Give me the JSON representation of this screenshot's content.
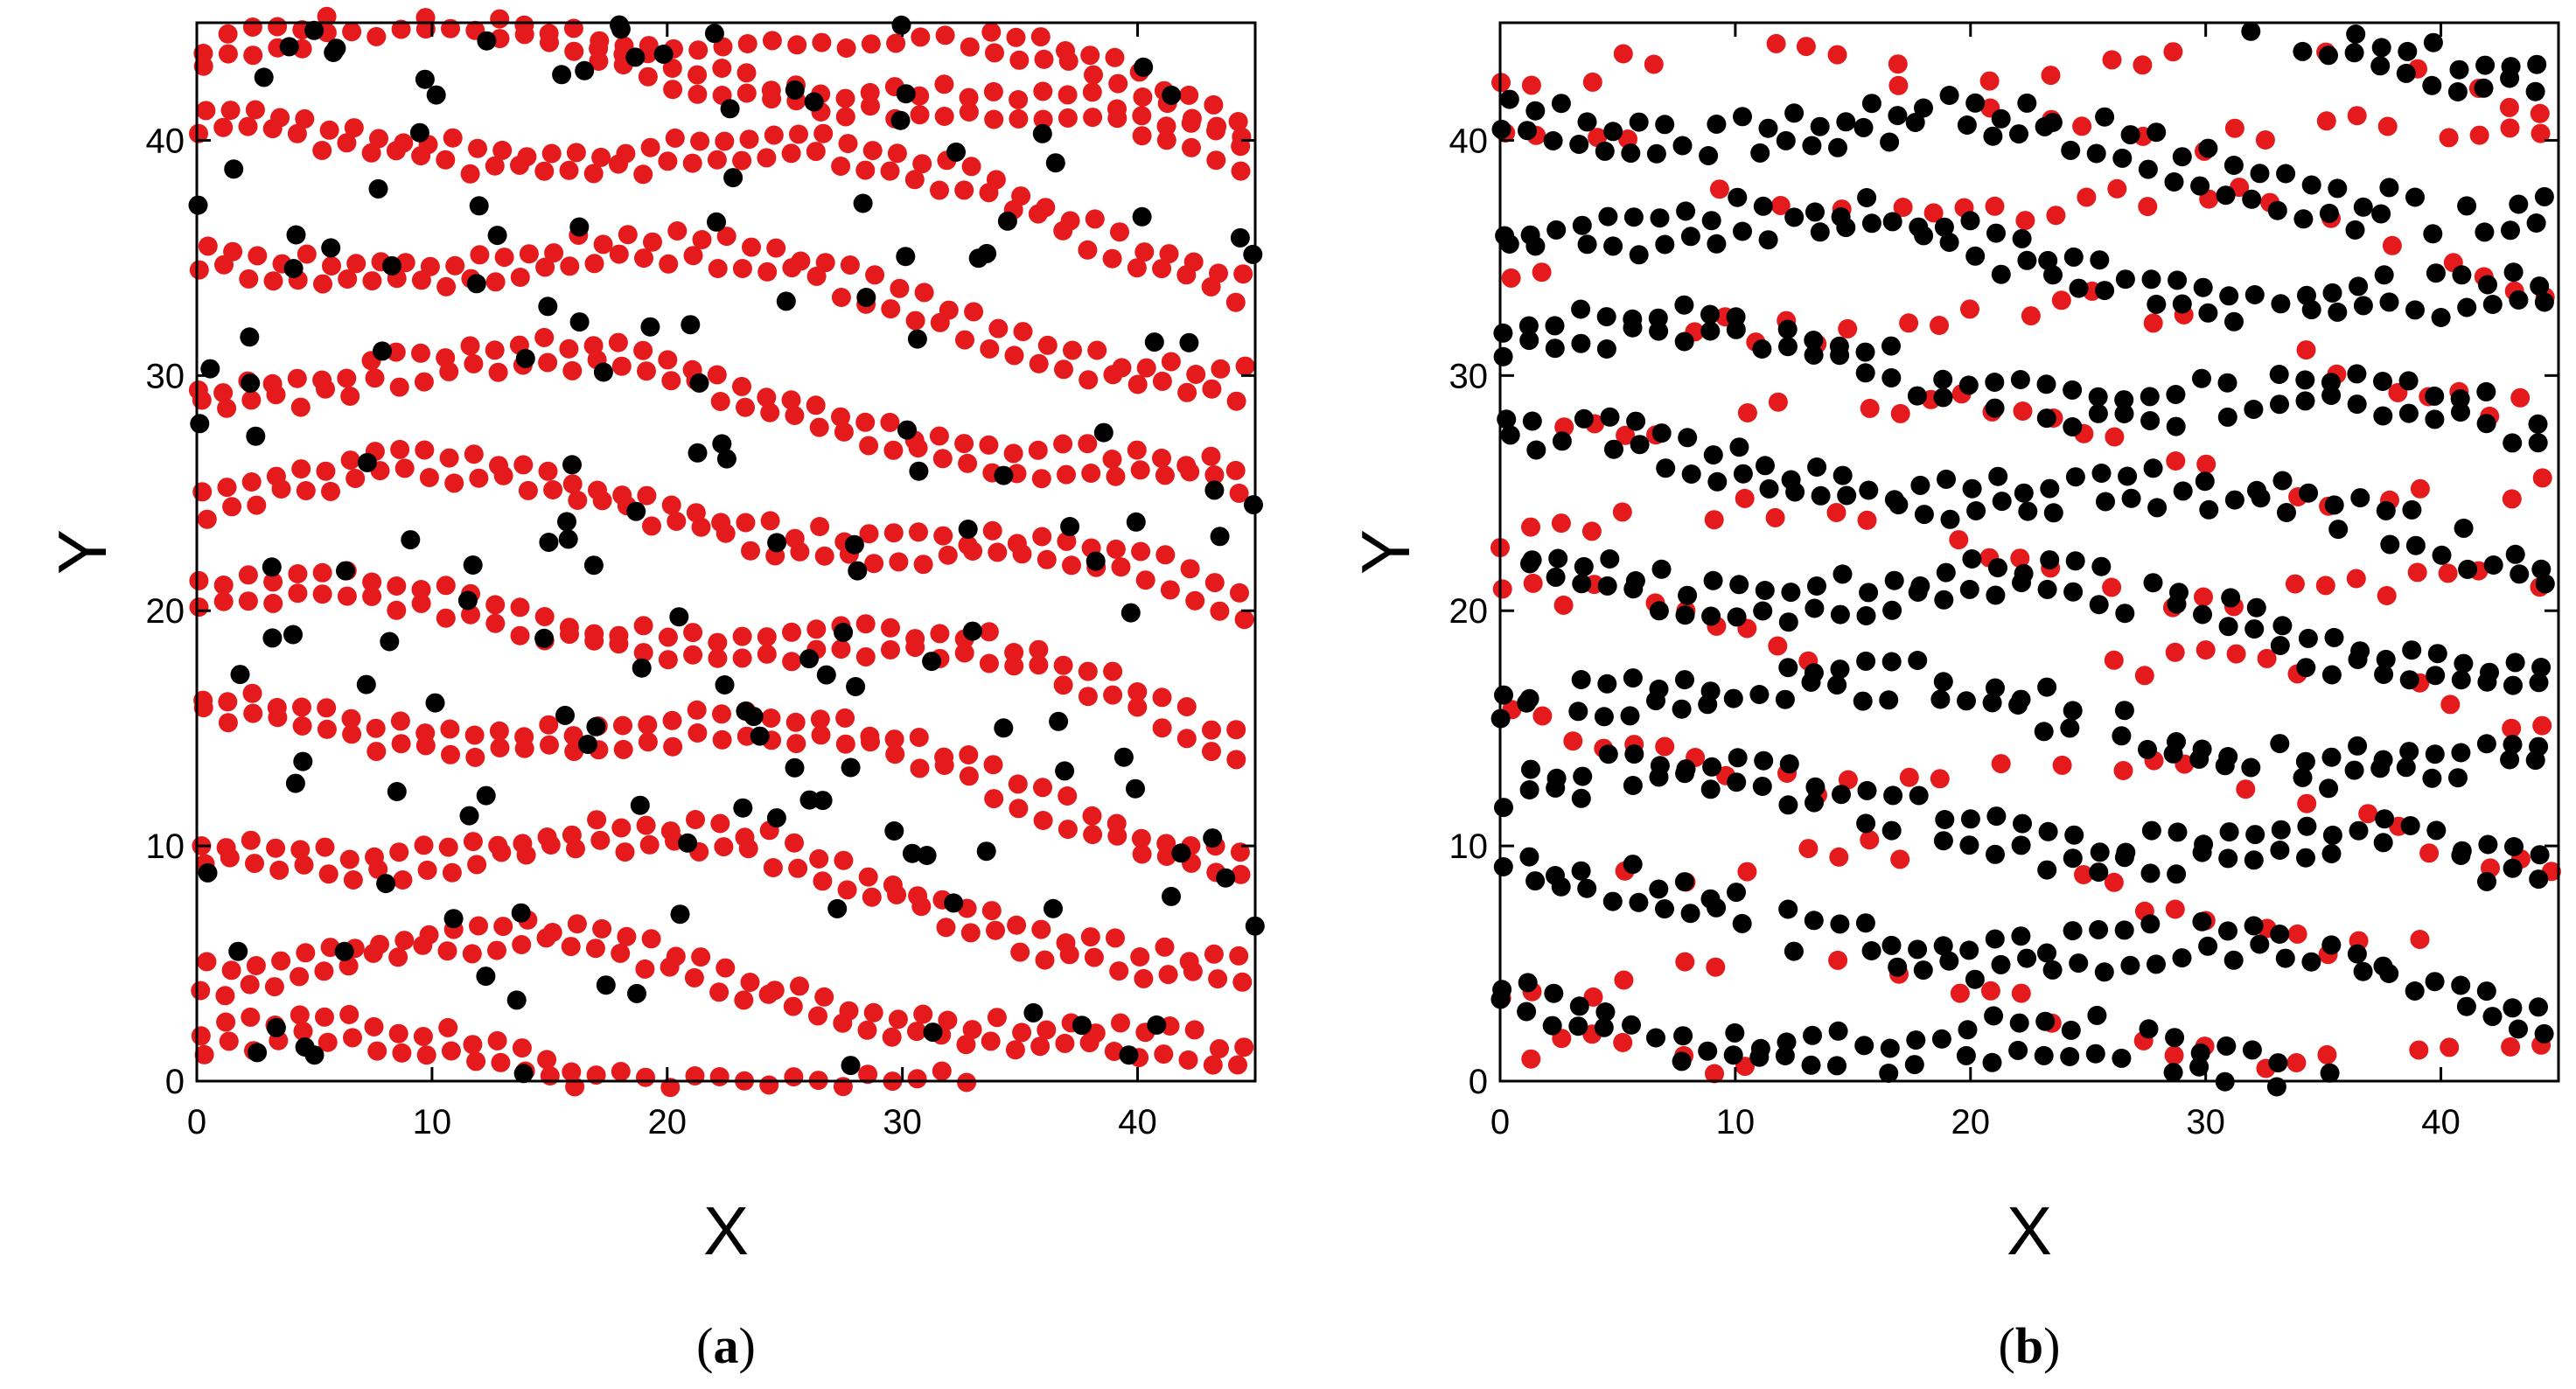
{
  "chart_data": [
    {
      "type": "scatter",
      "panel_label": "a",
      "xlabel": "X",
      "ylabel": "Y",
      "xlim": [
        0,
        45
      ],
      "ylim": [
        0,
        45
      ],
      "xticks": [
        0,
        10,
        20,
        30,
        40
      ],
      "yticks": [
        0,
        10,
        20,
        30,
        40
      ],
      "grid": false,
      "series": [
        {
          "color": "#e41a1c",
          "kind": "banded",
          "bands_y0": [
            0.6,
            4.8,
            9.6,
            14.8,
            19.5,
            24.6,
            29.6,
            34.6,
            39.6,
            43.5
          ],
          "band_sag": 2.0,
          "band_tilt": -5.5,
          "band_wave": 1.0,
          "point_spacing": 1.05,
          "y_jitter": 0.35,
          "rows_per_band": 2,
          "row_gap": 0.9
        },
        {
          "color": "#000000",
          "kind": "scattered",
          "count": 170,
          "seed": 17
        }
      ]
    },
    {
      "type": "scatter",
      "panel_label": "b",
      "xlabel": "X",
      "ylabel": "Y",
      "xlim": [
        0,
        45
      ],
      "ylim": [
        0,
        45
      ],
      "xticks": [
        0,
        10,
        20,
        30,
        40
      ],
      "yticks": [
        0,
        10,
        20,
        30,
        40
      ],
      "grid": false,
      "series": [
        {
          "color": "#e41a1c",
          "kind": "banded",
          "bands_y0": [
            0.6,
            4.8,
            10.0,
            14.6,
            19.6,
            24.0,
            29.0,
            33.8,
            39.0,
            43.2
          ],
          "band_sag": 0.6,
          "band_tilt": -4.5,
          "band_wave": 1.2,
          "point_spacing": 1.3,
          "y_jitter": 0.6,
          "rows_per_band": 1,
          "row_gap": 0.9,
          "gap_fraction": 0.35
        },
        {
          "color": "#000000",
          "kind": "banded",
          "bands_y0": [
            2.4,
            7.2,
            12.2,
            16.8,
            21.6,
            26.4,
            31.2,
            36.2,
            41.0
          ],
          "band_sag": 0.5,
          "band_tilt": -4.5,
          "band_wave": 1.0,
          "point_spacing": 1.1,
          "y_jitter": 0.5,
          "rows_per_band": 2,
          "row_gap": 1.0,
          "gap_fraction": 0.1
        }
      ]
    }
  ]
}
